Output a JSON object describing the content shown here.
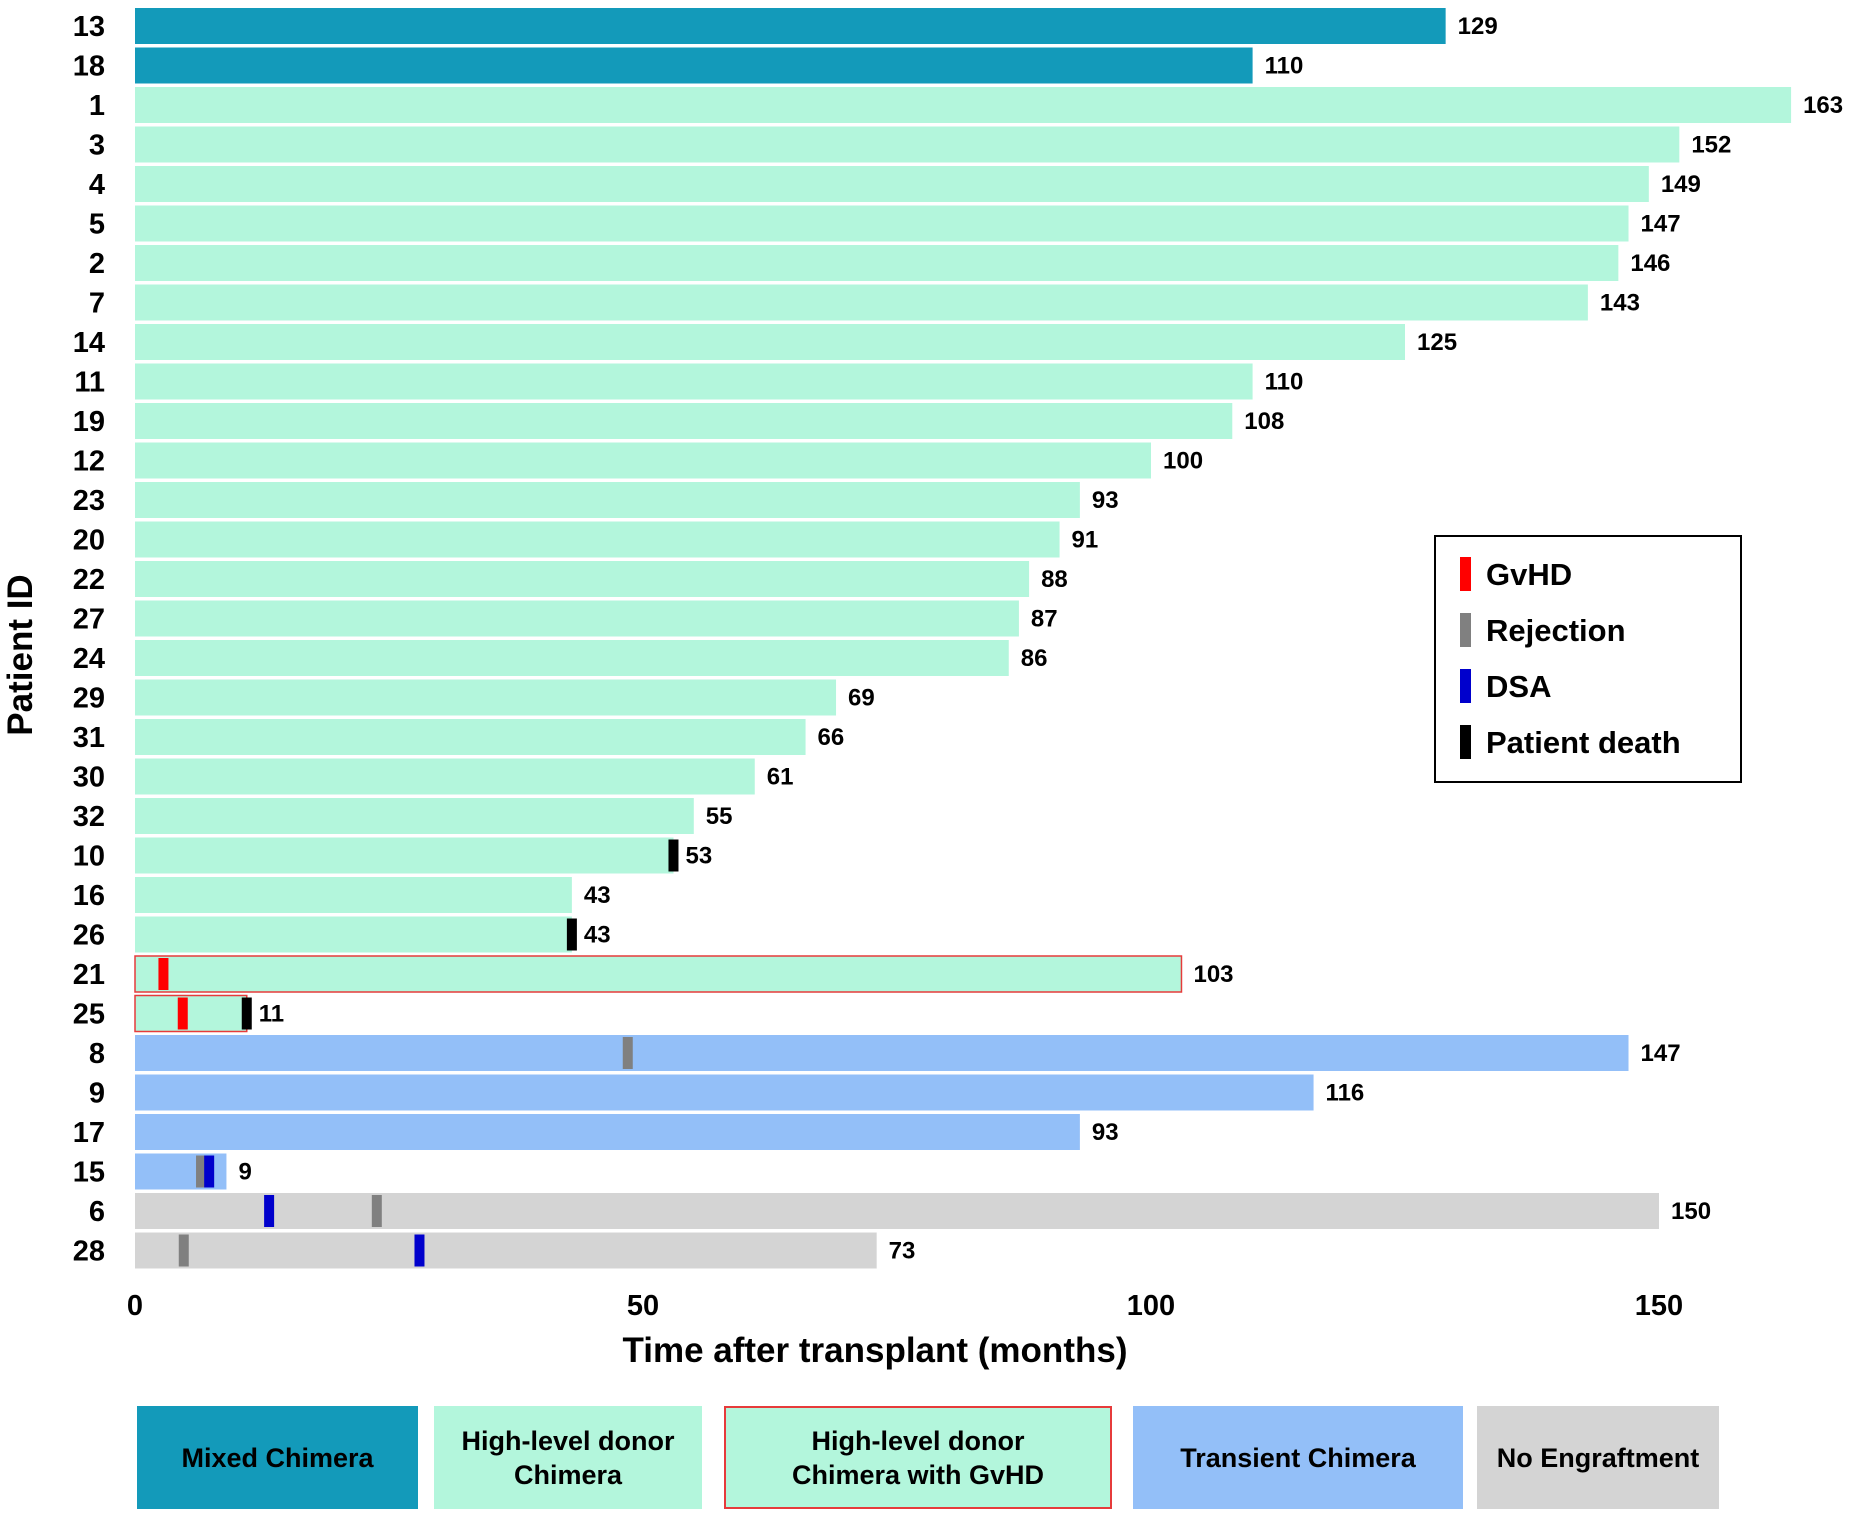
{
  "chart_data": {
    "type": "bar",
    "orientation": "horizontal",
    "xlabel": "Time after transplant (months)",
    "ylabel": "Patient ID",
    "xlim": [
      0,
      163
    ],
    "xticks": [
      0,
      50,
      100,
      150
    ],
    "categories": {
      "mixed": {
        "name": "Mixed Chimera",
        "color": "#139aba"
      },
      "high": {
        "name": "High-level donor\nChimera",
        "color": "#b3f6dc"
      },
      "gvhd": {
        "name": "High-level donor\nChimera with GvHD",
        "color": "#b3f6dc",
        "border": "#e63b3b"
      },
      "transient": {
        "name": "Transient  Chimera",
        "color": "#93bff8"
      },
      "none": {
        "name": "No Engraftment",
        "color": "#d4d4d4"
      }
    },
    "events_legend": [
      {
        "name": "GvHD",
        "color": "#ff0000"
      },
      {
        "name": "Rejection",
        "color": "#808080"
      },
      {
        "name": "DSA",
        "color": "#0000cc"
      },
      {
        "name": "Patient death",
        "color": "#000000"
      }
    ],
    "patients": [
      {
        "id": "13",
        "value": 129,
        "category": "mixed",
        "events": []
      },
      {
        "id": "18",
        "value": 110,
        "category": "mixed",
        "events": []
      },
      {
        "id": "1",
        "value": 163,
        "category": "high",
        "events": []
      },
      {
        "id": "3",
        "value": 152,
        "category": "high",
        "events": []
      },
      {
        "id": "4",
        "value": 149,
        "category": "high",
        "events": []
      },
      {
        "id": "5",
        "value": 147,
        "category": "high",
        "events": []
      },
      {
        "id": "2",
        "value": 146,
        "category": "high",
        "events": []
      },
      {
        "id": "7",
        "value": 143,
        "category": "high",
        "events": []
      },
      {
        "id": "14",
        "value": 125,
        "category": "high",
        "events": []
      },
      {
        "id": "11",
        "value": 110,
        "category": "high",
        "events": []
      },
      {
        "id": "19",
        "value": 108,
        "category": "high",
        "events": []
      },
      {
        "id": "12",
        "value": 100,
        "category": "high",
        "events": []
      },
      {
        "id": "23",
        "value": 93,
        "category": "high",
        "events": []
      },
      {
        "id": "20",
        "value": 91,
        "category": "high",
        "events": []
      },
      {
        "id": "22",
        "value": 88,
        "category": "high",
        "events": []
      },
      {
        "id": "27",
        "value": 87,
        "category": "high",
        "events": []
      },
      {
        "id": "24",
        "value": 86,
        "category": "high",
        "events": []
      },
      {
        "id": "29",
        "value": 69,
        "category": "high",
        "events": []
      },
      {
        "id": "31",
        "value": 66,
        "category": "high",
        "events": []
      },
      {
        "id": "30",
        "value": 61,
        "category": "high",
        "events": []
      },
      {
        "id": "32",
        "value": 55,
        "category": "high",
        "events": []
      },
      {
        "id": "10",
        "value": 53,
        "category": "high",
        "events": [
          {
            "type": "death",
            "t": 53
          }
        ]
      },
      {
        "id": "16",
        "value": 43,
        "category": "high",
        "events": []
      },
      {
        "id": "26",
        "value": 43,
        "category": "high",
        "events": [
          {
            "type": "death",
            "t": 43
          }
        ]
      },
      {
        "id": "21",
        "value": 103,
        "category": "gvhd",
        "events": [
          {
            "type": "gvhd",
            "t": 2.8
          }
        ]
      },
      {
        "id": "25",
        "value": 11,
        "category": "gvhd",
        "events": [
          {
            "type": "gvhd",
            "t": 4.7
          },
          {
            "type": "death",
            "t": 11
          }
        ]
      },
      {
        "id": "8",
        "value": 147,
        "category": "transient",
        "events": [
          {
            "type": "rejection",
            "t": 48.5
          }
        ]
      },
      {
        "id": "9",
        "value": 116,
        "category": "transient",
        "events": []
      },
      {
        "id": "17",
        "value": 93,
        "category": "transient",
        "events": []
      },
      {
        "id": "15",
        "value": 9,
        "category": "transient",
        "events": [
          {
            "type": "rejection",
            "t": 6.5
          },
          {
            "type": "dsa",
            "t": 7.3
          }
        ]
      },
      {
        "id": "6",
        "value": 150,
        "category": "none",
        "events": [
          {
            "type": "dsa",
            "t": 13.2
          },
          {
            "type": "rejection",
            "t": 23.8
          }
        ]
      },
      {
        "id": "28",
        "value": 73,
        "category": "none",
        "events": [
          {
            "type": "rejection",
            "t": 4.8
          },
          {
            "type": "dsa",
            "t": 28
          }
        ]
      }
    ]
  },
  "bottom_legend": [
    {
      "key": "mixed",
      "label": "Mixed Chimera"
    },
    {
      "key": "high",
      "label": "High-level donor\nChimera"
    },
    {
      "key": "gvhd",
      "label": "High-level donor\nChimera with GvHD"
    },
    {
      "key": "transient",
      "label": "Transient  Chimera"
    },
    {
      "key": "none",
      "label": "No Engraftment"
    }
  ]
}
